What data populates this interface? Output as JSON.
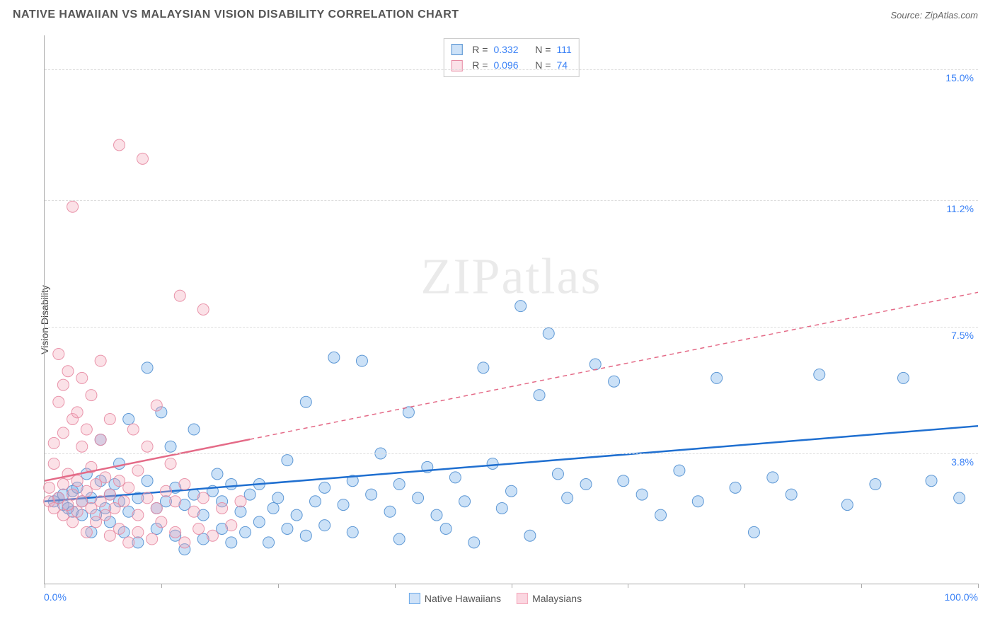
{
  "title": "NATIVE HAWAIIAN VS MALAYSIAN VISION DISABILITY CORRELATION CHART",
  "source": "Source: ZipAtlas.com",
  "ylabel": "Vision Disability",
  "watermark": {
    "bold": "ZIP",
    "light": "atlas"
  },
  "chart": {
    "type": "scatter",
    "background_color": "#ffffff",
    "grid_color": "#dddddd",
    "axis_color": "#aaaaaa",
    "xlim": [
      0,
      100
    ],
    "ylim": [
      0,
      16
    ],
    "x_tick_positions": [
      0,
      12.5,
      25,
      37.5,
      50,
      62.5,
      75,
      87.5,
      100
    ],
    "x_min_label": "0.0%",
    "x_max_label": "100.0%",
    "y_gridlines": [
      {
        "value": 3.8,
        "label": "3.8%"
      },
      {
        "value": 7.5,
        "label": "7.5%"
      },
      {
        "value": 11.2,
        "label": "11.2%"
      },
      {
        "value": 15.0,
        "label": "15.0%"
      }
    ],
    "marker_radius": 8,
    "marker_fill_opacity": 0.35,
    "marker_stroke_opacity": 0.9,
    "trend_line_width": 2.5,
    "series": [
      {
        "name": "Native Hawaiians",
        "color": "#6aa9e9",
        "stroke": "#4f8ed0",
        "trend_color": "#1f6fd0",
        "R": "0.332",
        "N": "111",
        "trend": {
          "x1": 0,
          "y1": 2.4,
          "x2": 100,
          "y2": 4.6,
          "solid_until_x": 100
        },
        "points": [
          [
            1,
            2.4
          ],
          [
            1.5,
            2.5
          ],
          [
            2,
            2.3
          ],
          [
            2,
            2.6
          ],
          [
            2.5,
            2.2
          ],
          [
            3,
            2.7
          ],
          [
            3,
            2.1
          ],
          [
            3.5,
            2.8
          ],
          [
            4,
            2.4
          ],
          [
            4,
            2.0
          ],
          [
            4.5,
            3.2
          ],
          [
            5,
            2.5
          ],
          [
            5,
            1.5
          ],
          [
            5.5,
            2.0
          ],
          [
            6,
            3.0
          ],
          [
            6,
            4.2
          ],
          [
            6.5,
            2.2
          ],
          [
            7,
            2.6
          ],
          [
            7,
            1.8
          ],
          [
            7.5,
            2.9
          ],
          [
            8,
            2.4
          ],
          [
            8,
            3.5
          ],
          [
            8.5,
            1.5
          ],
          [
            9,
            2.1
          ],
          [
            9,
            4.8
          ],
          [
            10,
            2.5
          ],
          [
            10,
            1.2
          ],
          [
            11,
            3.0
          ],
          [
            11,
            6.3
          ],
          [
            12,
            2.2
          ],
          [
            12,
            1.6
          ],
          [
            12.5,
            5.0
          ],
          [
            13,
            2.4
          ],
          [
            13.5,
            4.0
          ],
          [
            14,
            1.4
          ],
          [
            14,
            2.8
          ],
          [
            15,
            2.3
          ],
          [
            15,
            1.0
          ],
          [
            16,
            2.6
          ],
          [
            16,
            4.5
          ],
          [
            17,
            2.0
          ],
          [
            17,
            1.3
          ],
          [
            18,
            2.7
          ],
          [
            18.5,
            3.2
          ],
          [
            19,
            1.6
          ],
          [
            19,
            2.4
          ],
          [
            20,
            2.9
          ],
          [
            20,
            1.2
          ],
          [
            21,
            2.1
          ],
          [
            21.5,
            1.5
          ],
          [
            22,
            2.6
          ],
          [
            23,
            1.8
          ],
          [
            23,
            2.9
          ],
          [
            24,
            1.2
          ],
          [
            24.5,
            2.2
          ],
          [
            25,
            2.5
          ],
          [
            26,
            1.6
          ],
          [
            26,
            3.6
          ],
          [
            27,
            2.0
          ],
          [
            28,
            5.3
          ],
          [
            28,
            1.4
          ],
          [
            29,
            2.4
          ],
          [
            30,
            2.8
          ],
          [
            30,
            1.7
          ],
          [
            31,
            6.6
          ],
          [
            32,
            2.3
          ],
          [
            33,
            1.5
          ],
          [
            33,
            3.0
          ],
          [
            34,
            6.5
          ],
          [
            35,
            2.6
          ],
          [
            36,
            3.8
          ],
          [
            37,
            2.1
          ],
          [
            38,
            1.3
          ],
          [
            38,
            2.9
          ],
          [
            39,
            5.0
          ],
          [
            40,
            2.5
          ],
          [
            41,
            3.4
          ],
          [
            42,
            2.0
          ],
          [
            43,
            1.6
          ],
          [
            44,
            3.1
          ],
          [
            45,
            2.4
          ],
          [
            46,
            1.2
          ],
          [
            47,
            6.3
          ],
          [
            48,
            3.5
          ],
          [
            49,
            2.2
          ],
          [
            50,
            2.7
          ],
          [
            51,
            8.1
          ],
          [
            52,
            1.4
          ],
          [
            53,
            5.5
          ],
          [
            54,
            7.3
          ],
          [
            55,
            3.2
          ],
          [
            56,
            2.5
          ],
          [
            58,
            2.9
          ],
          [
            59,
            6.4
          ],
          [
            61,
            5.9
          ],
          [
            62,
            3.0
          ],
          [
            64,
            2.6
          ],
          [
            66,
            2.0
          ],
          [
            68,
            3.3
          ],
          [
            70,
            2.4
          ],
          [
            72,
            6.0
          ],
          [
            74,
            2.8
          ],
          [
            76,
            1.5
          ],
          [
            78,
            3.1
          ],
          [
            80,
            2.6
          ],
          [
            83,
            6.1
          ],
          [
            86,
            2.3
          ],
          [
            89,
            2.9
          ],
          [
            92,
            6.0
          ],
          [
            95,
            3.0
          ],
          [
            98,
            2.5
          ]
        ]
      },
      {
        "name": "Malaysians",
        "color": "#f4a8bb",
        "stroke": "#e78aa2",
        "trend_color": "#e46a87",
        "R": "0.096",
        "N": "74",
        "trend": {
          "x1": 0,
          "y1": 3.0,
          "x2": 100,
          "y2": 8.5,
          "solid_until_x": 22
        },
        "points": [
          [
            0.5,
            2.4
          ],
          [
            0.5,
            2.8
          ],
          [
            1,
            2.2
          ],
          [
            1,
            3.5
          ],
          [
            1,
            4.1
          ],
          [
            1.5,
            2.5
          ],
          [
            1.5,
            5.3
          ],
          [
            1.5,
            6.7
          ],
          [
            2,
            2.0
          ],
          [
            2,
            2.9
          ],
          [
            2,
            4.4
          ],
          [
            2,
            5.8
          ],
          [
            2.5,
            2.3
          ],
          [
            2.5,
            3.2
          ],
          [
            2.5,
            6.2
          ],
          [
            3,
            1.8
          ],
          [
            3,
            2.6
          ],
          [
            3,
            4.8
          ],
          [
            3,
            11.0
          ],
          [
            3.5,
            2.1
          ],
          [
            3.5,
            3.0
          ],
          [
            3.5,
            5.0
          ],
          [
            4,
            2.4
          ],
          [
            4,
            4.0
          ],
          [
            4,
            6.0
          ],
          [
            4.5,
            1.5
          ],
          [
            4.5,
            2.7
          ],
          [
            4.5,
            4.5
          ],
          [
            5,
            2.2
          ],
          [
            5,
            3.4
          ],
          [
            5,
            5.5
          ],
          [
            5.5,
            1.8
          ],
          [
            5.5,
            2.9
          ],
          [
            6,
            2.4
          ],
          [
            6,
            4.2
          ],
          [
            6,
            6.5
          ],
          [
            6.5,
            2.0
          ],
          [
            6.5,
            3.1
          ],
          [
            7,
            1.4
          ],
          [
            7,
            2.6
          ],
          [
            7,
            4.8
          ],
          [
            7.5,
            2.2
          ],
          [
            8,
            1.6
          ],
          [
            8,
            3.0
          ],
          [
            8,
            12.8
          ],
          [
            8.5,
            2.4
          ],
          [
            9,
            1.2
          ],
          [
            9,
            2.8
          ],
          [
            9.5,
            4.5
          ],
          [
            10,
            2.0
          ],
          [
            10,
            1.5
          ],
          [
            10,
            3.3
          ],
          [
            10.5,
            12.4
          ],
          [
            11,
            2.5
          ],
          [
            11,
            4.0
          ],
          [
            11.5,
            1.3
          ],
          [
            12,
            2.2
          ],
          [
            12,
            5.2
          ],
          [
            12.5,
            1.8
          ],
          [
            13,
            2.7
          ],
          [
            13.5,
            3.5
          ],
          [
            14,
            1.5
          ],
          [
            14,
            2.4
          ],
          [
            14.5,
            8.4
          ],
          [
            15,
            1.2
          ],
          [
            15,
            2.9
          ],
          [
            16,
            2.1
          ],
          [
            16.5,
            1.6
          ],
          [
            17,
            8.0
          ],
          [
            17,
            2.5
          ],
          [
            18,
            1.4
          ],
          [
            19,
            2.2
          ],
          [
            20,
            1.7
          ],
          [
            21,
            2.4
          ]
        ]
      }
    ],
    "bottom_legend": [
      {
        "label": "Native Hawaiians",
        "fill": "#cfe2f8",
        "stroke": "#6aa9e9"
      },
      {
        "label": "Malaysians",
        "fill": "#fbd7e1",
        "stroke": "#f4a8bb"
      }
    ]
  }
}
